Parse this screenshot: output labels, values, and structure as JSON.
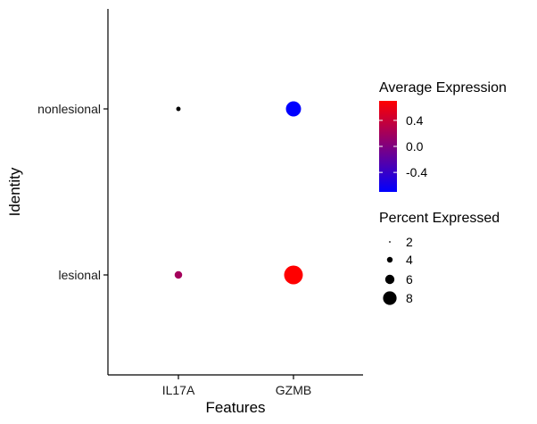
{
  "chart_data": {
    "type": "scatter",
    "subtype": "dot-plot",
    "xlabel": "Features",
    "ylabel": "Identity",
    "x_categories": [
      "IL17A",
      "GZMB"
    ],
    "y_categories": [
      "lesional",
      "nonlesional"
    ],
    "points": [
      {
        "x": "IL17A",
        "y": "nonlesional",
        "avg_expression": 0.0,
        "pct_expressed": 0.5
      },
      {
        "x": "GZMB",
        "y": "nonlesional",
        "avg_expression": -0.7,
        "pct_expressed": 6.0
      },
      {
        "x": "IL17A",
        "y": "lesional",
        "avg_expression": 0.2,
        "pct_expressed": 1.5
      },
      {
        "x": "GZMB",
        "y": "lesional",
        "avg_expression": 0.7,
        "pct_expressed": 9.2
      }
    ],
    "color_scale": {
      "title": "Average Expression",
      "low_color": "#0000ff",
      "high_color": "#ff0000",
      "limits": [
        -0.7,
        0.7
      ],
      "ticks": [
        0.4,
        0.0,
        -0.4
      ],
      "tick_labels": [
        "0.4",
        "0.0",
        "-0.4"
      ]
    },
    "size_scale": {
      "title": "Percent Expressed",
      "breaks": [
        2,
        4,
        6,
        8
      ],
      "labels": [
        "2",
        "4",
        "6",
        "8"
      ],
      "max_value": 9.2
    },
    "grid": false,
    "legend_position": "right"
  }
}
